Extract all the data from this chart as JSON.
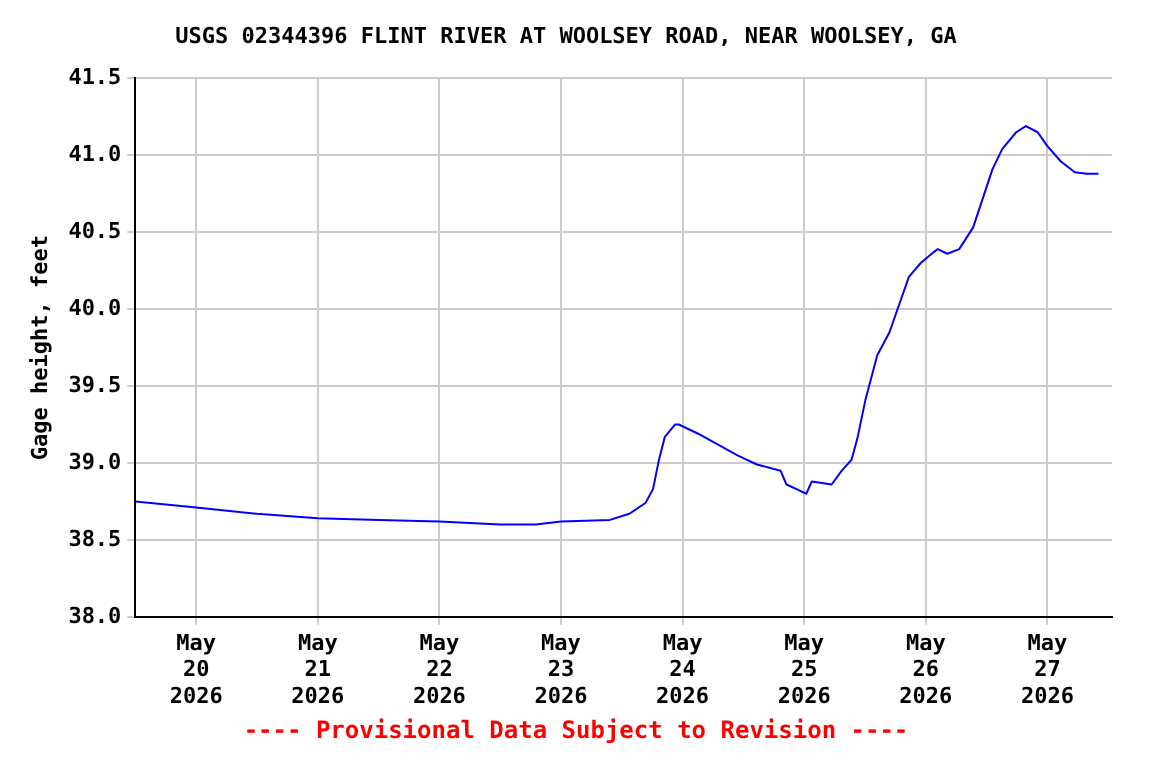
{
  "chart_data": {
    "type": "line",
    "title": "USGS 02344396 FLINT RIVER AT WOOLSEY ROAD, NEAR WOOLSEY, GA",
    "ylabel": "Gage height, feet",
    "annotations": [
      "---- Provisional Data Subject to Revision ----"
    ],
    "x": [
      "2026-05-19T12:00",
      "2026-05-20T00:00",
      "2026-05-20T12:00",
      "2026-05-21T00:00",
      "2026-05-21T12:00",
      "2026-05-22T00:00",
      "2026-05-22T12:00",
      "2026-05-22T19:00",
      "2026-05-23T00:00",
      "2026-05-23T09:40",
      "2026-05-23T13:30",
      "2026-05-23T16:40",
      "2026-05-23T18:10",
      "2026-05-23T19:20",
      "2026-05-23T20:30",
      "2026-05-23T22:30",
      "2026-05-23T23:15",
      "2026-05-24T03:05",
      "2026-05-24T07:00",
      "2026-05-24T10:50",
      "2026-05-24T14:40",
      "2026-05-24T19:20",
      "2026-05-24T20:30",
      "2026-05-24T22:30",
      "2026-05-25T00:25",
      "2026-05-25T01:30",
      "2026-05-25T03:30",
      "2026-05-25T05:25",
      "2026-05-25T07:25",
      "2026-05-25T09:20",
      "2026-05-25T10:30",
      "2026-05-25T12:05",
      "2026-05-25T14:25",
      "2026-05-25T16:50",
      "2026-05-25T18:45",
      "2026-05-25T20:40",
      "2026-05-25T23:00",
      "2026-05-26T01:10",
      "2026-05-26T02:20",
      "2026-05-26T04:15",
      "2026-05-26T06:35",
      "2026-05-26T09:20",
      "2026-05-26T11:15",
      "2026-05-26T13:10",
      "2026-05-26T15:05",
      "2026-05-26T17:50",
      "2026-05-26T19:45",
      "2026-05-26T22:05",
      "2026-05-27T00:00",
      "2026-05-27T02:40",
      "2026-05-27T05:25",
      "2026-05-27T07:45",
      "2026-05-27T10:05"
    ],
    "series": [
      {
        "color": "#0000ff",
        "values": [
          38.75,
          38.71,
          38.67,
          38.64,
          38.63,
          38.62,
          38.6,
          38.6,
          38.62,
          38.63,
          38.67,
          38.74,
          38.83,
          39.02,
          39.17,
          39.25,
          39.25,
          39.19,
          39.12,
          39.05,
          38.99,
          38.95,
          38.86,
          38.83,
          38.8,
          38.88,
          38.87,
          38.86,
          38.95,
          39.02,
          39.16,
          39.41,
          39.7,
          39.85,
          40.03,
          40.21,
          40.3,
          40.36,
          40.39,
          40.36,
          40.39,
          40.53,
          40.72,
          40.91,
          41.04,
          41.15,
          41.19,
          41.15,
          41.06,
          40.96,
          40.89,
          40.88,
          40.88
        ]
      }
    ],
    "xlim": [
      "2026-05-19T12:00",
      "2026-05-27T12:45"
    ],
    "xticks": [
      {
        "value": "2026-05-20",
        "label": "May 20 2026"
      },
      {
        "value": "2026-05-21",
        "label": "May 21 2026"
      },
      {
        "value": "2026-05-22",
        "label": "May 22 2026"
      },
      {
        "value": "2026-05-23",
        "label": "May 23 2026"
      },
      {
        "value": "2026-05-24",
        "label": "May 24 2026"
      },
      {
        "value": "2026-05-25",
        "label": "May 25 2026"
      },
      {
        "value": "2026-05-26",
        "label": "May 26 2026"
      },
      {
        "value": "2026-05-27",
        "label": "May 27 2026"
      }
    ],
    "ylim": [
      38,
      41.5
    ],
    "yticks": [
      {
        "value": 38,
        "label": "38.0"
      },
      38.5,
      {
        "value": 39,
        "label": "39.0"
      },
      39.5,
      {
        "value": 40,
        "label": "40.0"
      },
      40.5,
      {
        "value": 41,
        "label": "41.0"
      },
      41.5
    ],
    "grid": true,
    "legend": false,
    "marker": "none",
    "line_style": "solid"
  }
}
